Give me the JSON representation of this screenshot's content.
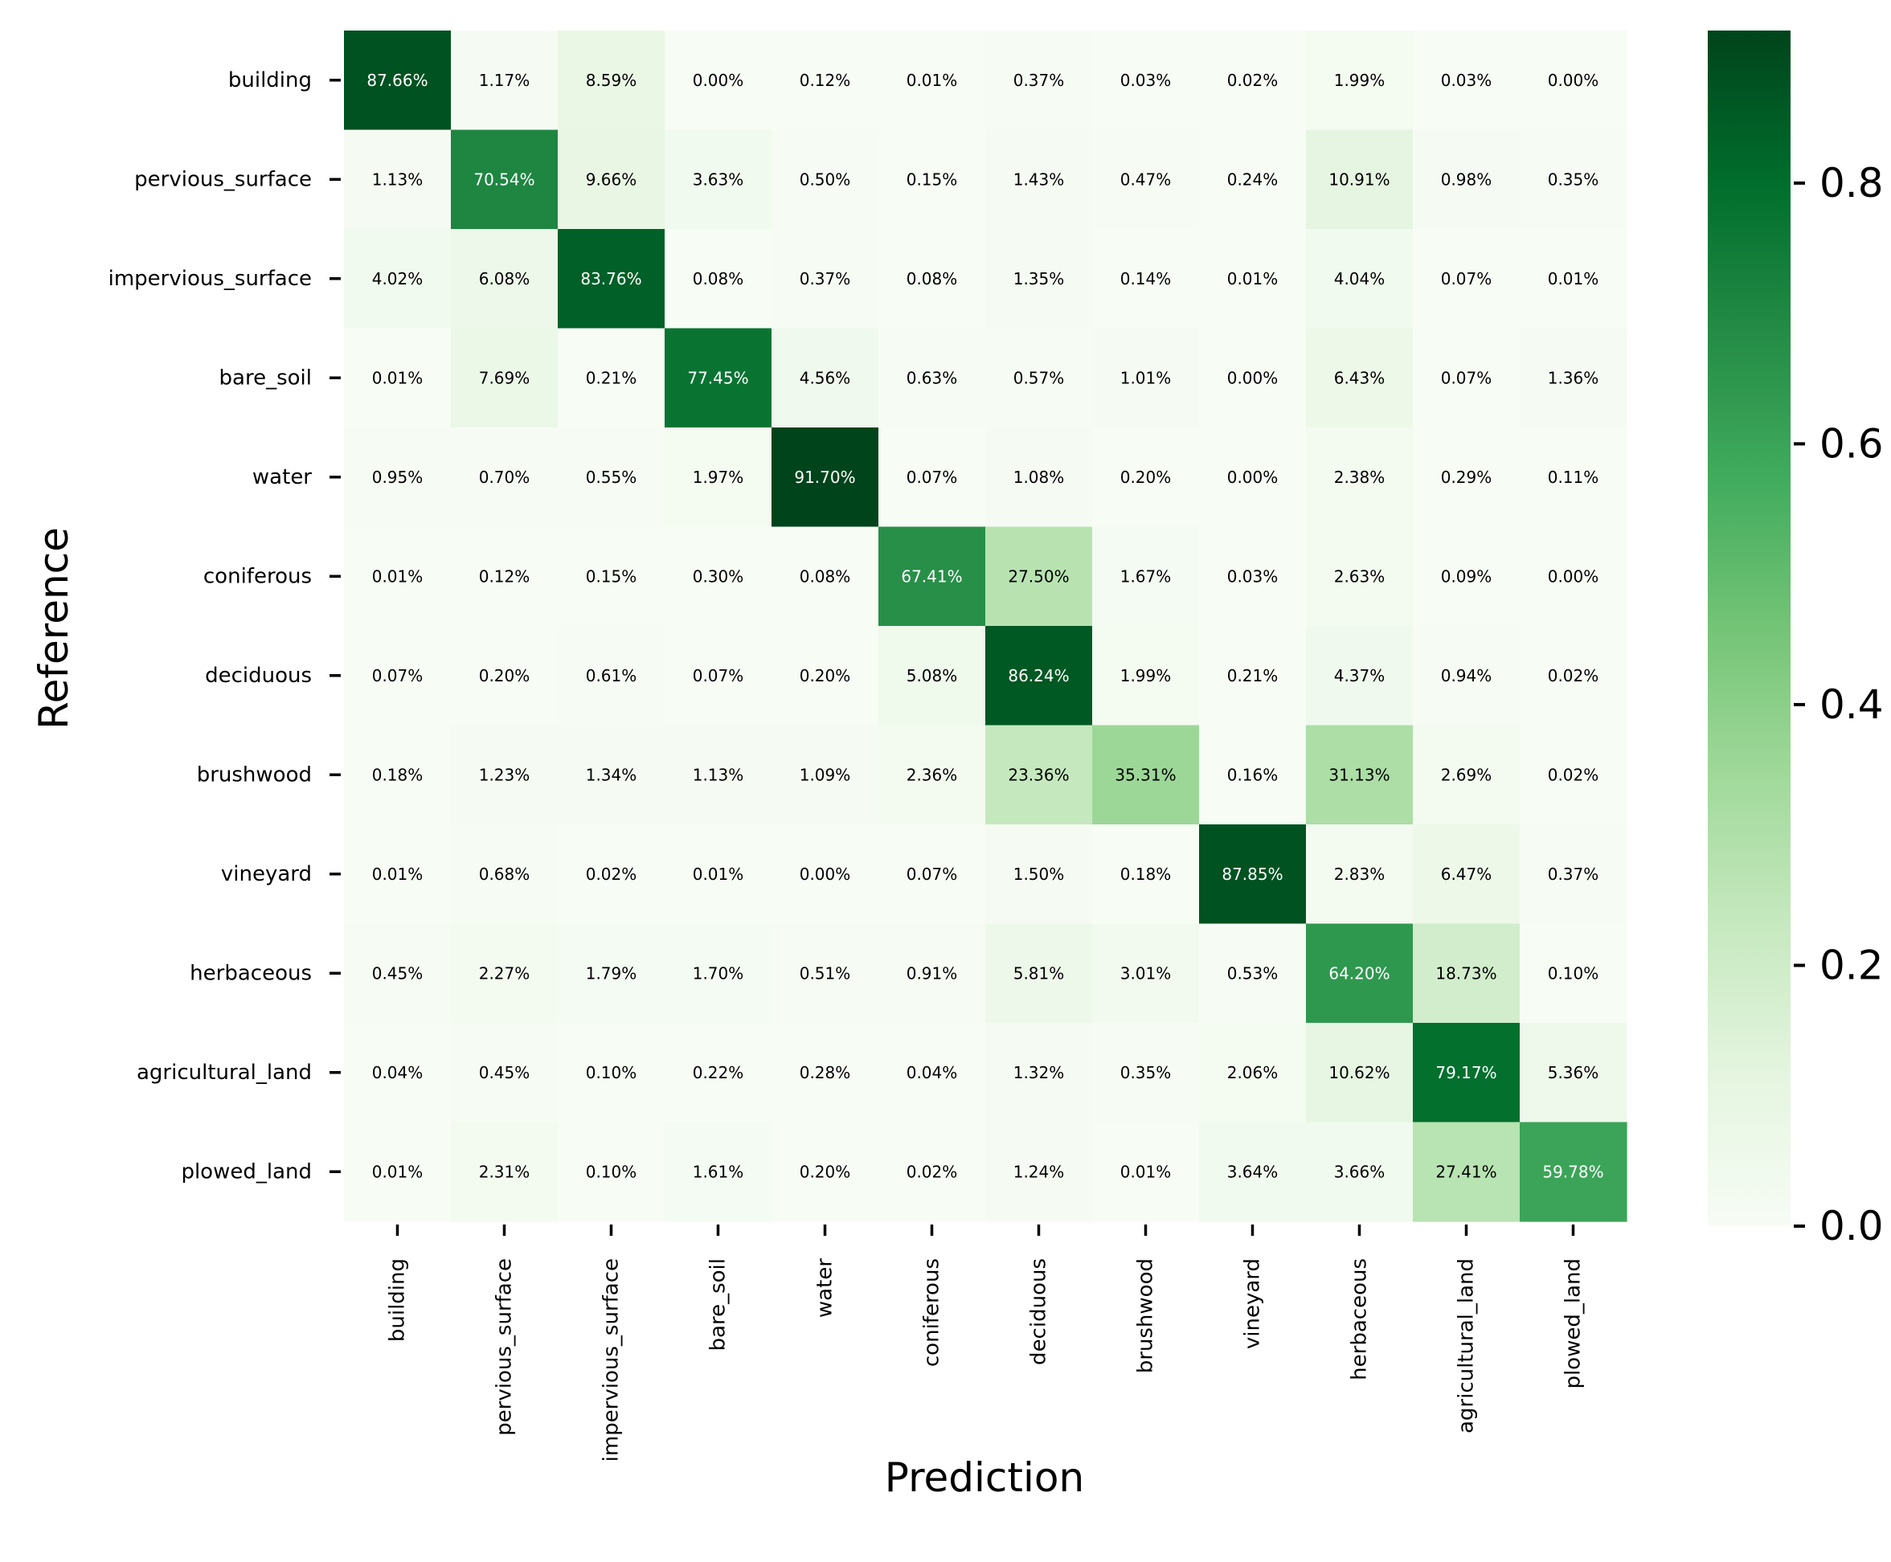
{
  "chart_data": {
    "type": "heatmap",
    "title": "",
    "xlabel": "Prediction",
    "ylabel": "Reference",
    "x_categories": [
      "building",
      "pervious_surface",
      "impervious_surface",
      "bare_soil",
      "water",
      "coniferous",
      "deciduous",
      "brushwood",
      "vineyard",
      "herbaceous",
      "agricultural_land",
      "plowed_land"
    ],
    "y_categories": [
      "building",
      "pervious_surface",
      "impervious_surface",
      "bare_soil",
      "water",
      "coniferous",
      "deciduous",
      "brushwood",
      "vineyard",
      "herbaceous",
      "agricultural_land",
      "plowed_land"
    ],
    "values": [
      [
        87.66,
        1.17,
        8.59,
        0.0,
        0.12,
        0.01,
        0.37,
        0.03,
        0.02,
        1.99,
        0.03,
        0.0
      ],
      [
        1.13,
        70.54,
        9.66,
        3.63,
        0.5,
        0.15,
        1.43,
        0.47,
        0.24,
        10.91,
        0.98,
        0.35
      ],
      [
        4.02,
        6.08,
        83.76,
        0.08,
        0.37,
        0.08,
        1.35,
        0.14,
        0.01,
        4.04,
        0.07,
        0.01
      ],
      [
        0.01,
        7.69,
        0.21,
        77.45,
        4.56,
        0.63,
        0.57,
        1.01,
        0.0,
        6.43,
        0.07,
        1.36
      ],
      [
        0.95,
        0.7,
        0.55,
        1.97,
        91.7,
        0.07,
        1.08,
        0.2,
        0.0,
        2.38,
        0.29,
        0.11
      ],
      [
        0.01,
        0.12,
        0.15,
        0.3,
        0.08,
        67.41,
        27.5,
        1.67,
        0.03,
        2.63,
        0.09,
        0.0
      ],
      [
        0.07,
        0.2,
        0.61,
        0.07,
        0.2,
        5.08,
        86.24,
        1.99,
        0.21,
        4.37,
        0.94,
        0.02
      ],
      [
        0.18,
        1.23,
        1.34,
        1.13,
        1.09,
        2.36,
        23.36,
        35.31,
        0.16,
        31.13,
        2.69,
        0.02
      ],
      [
        0.01,
        0.68,
        0.02,
        0.01,
        0.0,
        0.07,
        1.5,
        0.18,
        87.85,
        2.83,
        6.47,
        0.37
      ],
      [
        0.45,
        2.27,
        1.79,
        1.7,
        0.51,
        0.91,
        5.81,
        3.01,
        0.53,
        64.2,
        18.73,
        0.1
      ],
      [
        0.04,
        0.45,
        0.1,
        0.22,
        0.28,
        0.04,
        1.32,
        0.35,
        2.06,
        10.62,
        79.17,
        5.36
      ],
      [
        0.01,
        2.31,
        0.1,
        1.61,
        0.2,
        0.02,
        1.24,
        0.01,
        3.64,
        3.66,
        27.41,
        59.78
      ]
    ],
    "value_format": "percent with two decimals",
    "colormap": "Greens",
    "colorbar": {
      "range": [
        0.0,
        0.917
      ],
      "ticks": [
        "0.0",
        "0.2",
        "0.4",
        "0.6",
        "0.8"
      ]
    },
    "colors": {
      "low": "#f7fcf5",
      "high": "#00441b",
      "text_dark": "#000000",
      "text_light": "#ffffff"
    }
  }
}
